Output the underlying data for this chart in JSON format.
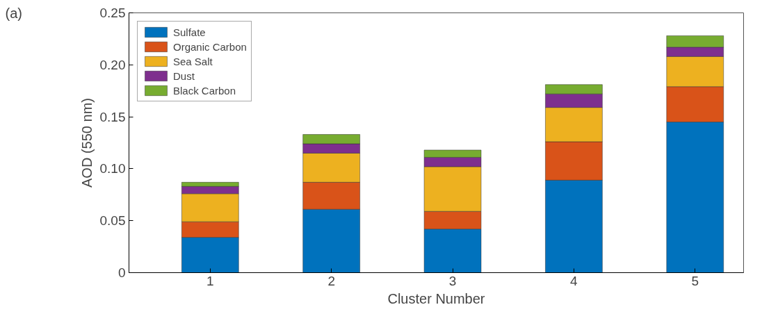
{
  "chart_data": {
    "type": "bar",
    "stacked": true,
    "categories": [
      "1",
      "2",
      "3",
      "4",
      "5"
    ],
    "series": [
      {
        "name": "Sulfate",
        "color": "#0072bd",
        "values": [
          0.034,
          0.061,
          0.042,
          0.089,
          0.145
        ]
      },
      {
        "name": "Organic Carbon",
        "color": "#d95319",
        "values": [
          0.015,
          0.026,
          0.017,
          0.037,
          0.034
        ]
      },
      {
        "name": "Sea Salt",
        "color": "#edb120",
        "values": [
          0.027,
          0.028,
          0.043,
          0.033,
          0.029
        ]
      },
      {
        "name": "Dust",
        "color": "#7e2f8e",
        "values": [
          0.007,
          0.009,
          0.009,
          0.013,
          0.009
        ]
      },
      {
        "name": "Black Carbon",
        "color": "#77ac30",
        "values": [
          0.004,
          0.009,
          0.007,
          0.009,
          0.011
        ]
      }
    ],
    "xlabel": "Cluster Number",
    "ylabel": "AOD (550 nm)",
    "ylim": [
      0,
      0.25
    ],
    "yticks": [
      {
        "value": 0,
        "label": "0"
      },
      {
        "value": 0.05,
        "label": "0.05"
      },
      {
        "value": 0.1,
        "label": "0.10"
      },
      {
        "value": 0.15,
        "label": "0.15"
      },
      {
        "value": 0.2,
        "label": "0.20"
      },
      {
        "value": 0.25,
        "label": "0.25"
      }
    ],
    "legend": "top left",
    "grid": false,
    "annotations": [
      "(a)"
    ]
  }
}
